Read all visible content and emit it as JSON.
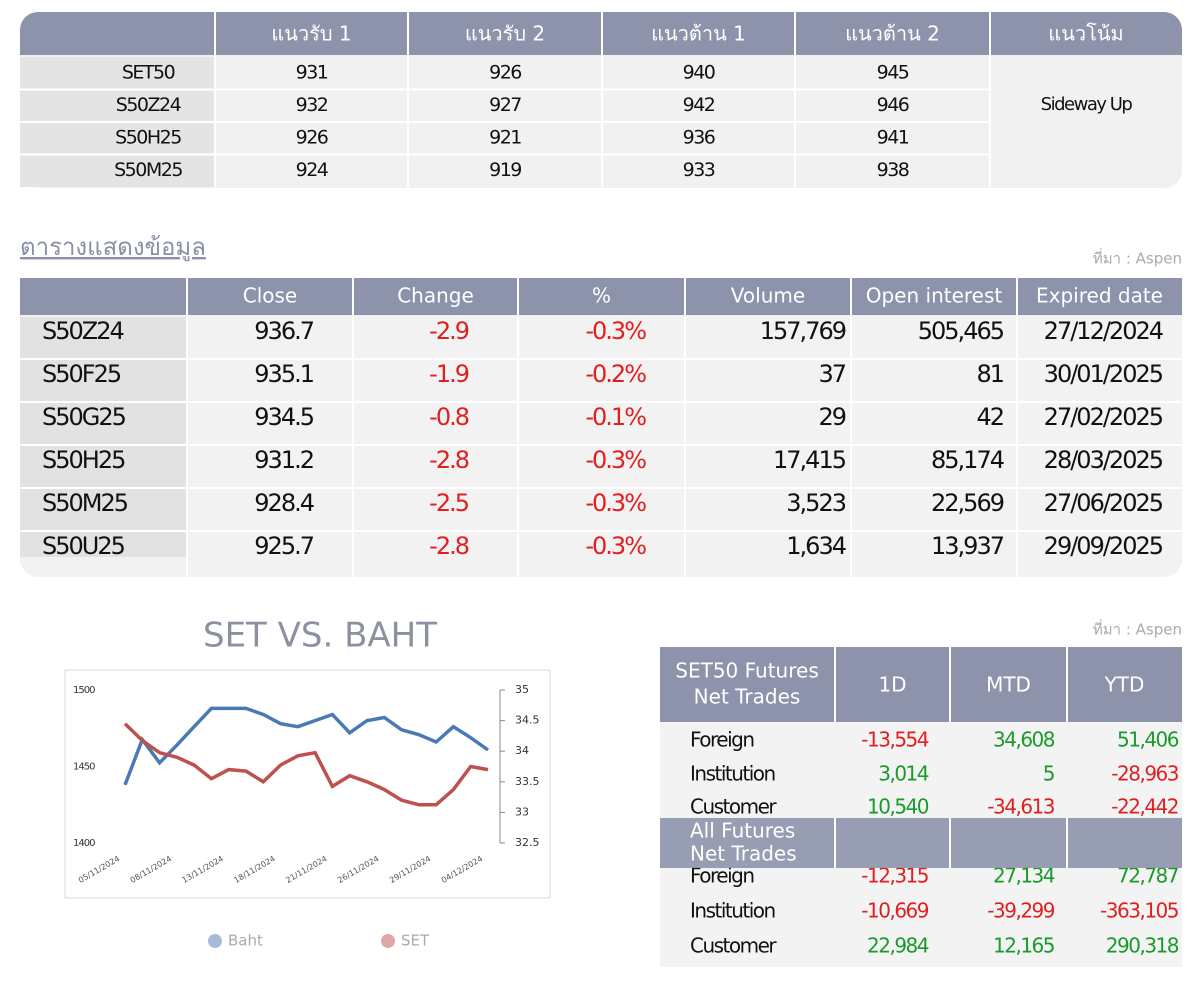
{
  "levels_table": {
    "columns": [
      "แนวรับ 1",
      "แนวรับ 2",
      "แนวต้าน 1",
      "แนวต้าน 2",
      "แนวโน้ม"
    ],
    "rows": [
      {
        "symbol": "SET50",
        "values": [
          "931",
          "926",
          "940",
          "945"
        ]
      },
      {
        "symbol": "S50Z24",
        "values": [
          "932",
          "927",
          "942",
          "946"
        ]
      },
      {
        "symbol": "S50H25",
        "values": [
          "926",
          "921",
          "936",
          "941"
        ]
      },
      {
        "symbol": "S50M25",
        "values": [
          "924",
          "919",
          "933",
          "938"
        ]
      }
    ],
    "trend": "Sideway Up"
  },
  "data_table": {
    "title": "ตารางแสดงข้อมูล",
    "source": "ที่มา : Aspen",
    "columns": [
      "Close",
      "Change",
      "%",
      "Volume",
      "Open interest",
      "Expired date"
    ],
    "rows": [
      [
        "S50Z24",
        "936.7",
        "-2.9",
        "-0.3%",
        "157,769",
        "505,465",
        "27/12/2024"
      ],
      [
        "S50F25",
        "935.1",
        "-1.9",
        "-0.2%",
        "37",
        "81",
        "30/01/2025"
      ],
      [
        "S50G25",
        "934.5",
        "-0.8",
        "-0.1%",
        "29",
        "42",
        "27/02/2025"
      ],
      [
        "S50H25",
        "931.2",
        "-2.8",
        "-0.3%",
        "17,415",
        "85,174",
        "28/03/2025"
      ],
      [
        "S50M25",
        "928.4",
        "-2.5",
        "-0.3%",
        "3,523",
        "22,569",
        "27/06/2025"
      ],
      [
        "S50U25",
        "925.7",
        "-2.8",
        "-0.3%",
        "1,634",
        "13,937",
        "29/09/2025"
      ]
    ]
  },
  "chart_data": {
    "type": "line",
    "title": "SET VS. BAHT",
    "categories": [
      "05/11/2024",
      null,
      null,
      "08/11/2024",
      null,
      null,
      "13/11/2024",
      null,
      null,
      "18/11/2024",
      null,
      null,
      "21/11/2024",
      null,
      null,
      "26/11/2024",
      null,
      null,
      "29/11/2024",
      null,
      null,
      "04/12/2024"
    ],
    "series": [
      {
        "name": "Baht",
        "color": "#4a7ab5",
        "axis": "y2",
        "values": [
          33.45,
          34.19,
          33.81,
          34.1,
          34.4,
          34.7,
          34.7,
          34.7,
          34.6,
          34.45,
          34.4,
          34.5,
          34.6,
          34.3,
          34.5,
          34.55,
          34.35,
          34.27,
          34.15,
          34.4,
          34.22,
          34.02
        ]
      },
      {
        "name": "SET",
        "color": "#c0504d",
        "values": [
          1478,
          1467,
          1459,
          1456,
          1451,
          1442,
          1448,
          1447,
          1440,
          1451,
          1457,
          1459,
          1437,
          1444,
          1440,
          1435,
          1428,
          1425,
          1425,
          1435,
          1450,
          1448
        ]
      }
    ],
    "ylim": [
      1400,
      1500
    ],
    "yticks": [
      1400,
      1450,
      1500
    ],
    "y2lim": [
      32.5,
      35
    ],
    "y2ticks": [
      32.5,
      33,
      33.5,
      34,
      34.5,
      35
    ],
    "legend": "bottom"
  },
  "net_trades": {
    "source": "ที่มา : Aspen",
    "columns": [
      "1D",
      "MTD",
      "YTD"
    ],
    "sections": [
      {
        "title": [
          "SET50 Futures",
          "Net Trades"
        ],
        "rows": [
          [
            "Foreign",
            "-13,554",
            "34,608",
            "51,406"
          ],
          [
            "Institution",
            "3,014",
            "5",
            "-28,963"
          ],
          [
            "Customer",
            "10,540",
            "-34,613",
            "-22,442"
          ]
        ]
      },
      {
        "title": [
          "All Futures",
          "Net Trades"
        ],
        "rows": [
          [
            "Foreign",
            "-12,315",
            "27,134",
            "72,787"
          ],
          [
            "Institution",
            "-10,669",
            "-39,299",
            "-363,105"
          ],
          [
            "Customer",
            "22,984",
            "12,165",
            "290,318"
          ]
        ]
      }
    ]
  }
}
